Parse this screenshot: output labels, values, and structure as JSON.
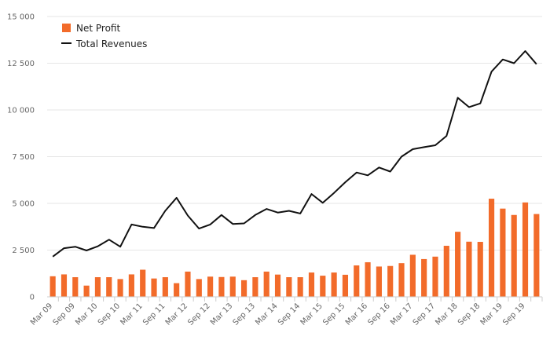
{
  "colors": {
    "bar": "#f26b2a",
    "line": "#111111",
    "grid": "#e6e6e6",
    "axis_text": "#666666"
  },
  "legend": {
    "placement": "top-left",
    "bar_label": "Net Profit",
    "line_label": "Total Revenues"
  },
  "chart_data": {
    "type": "bar",
    "title": "",
    "xlabel": "",
    "ylabel": "",
    "grid": true,
    "ylim": [
      0,
      15000
    ],
    "yticks": [
      0,
      2500,
      5000,
      7500,
      10000,
      12500,
      15000
    ],
    "ytick_labels": [
      "0",
      "2 500",
      "5 000",
      "7 500",
      "10 000",
      "12 500",
      "15 000"
    ],
    "categories": [
      "Mar 09",
      "Jun 09",
      "Sep 09",
      "Dec 09",
      "Mar 10",
      "Jun 10",
      "Sep 10",
      "Dec 10",
      "Mar 11",
      "Jun 11",
      "Sep 11",
      "Dec 11",
      "Mar 12",
      "Jun 12",
      "Sep 12",
      "Dec 12",
      "Mar 13",
      "Jun 13",
      "Sep 13",
      "Dec 13",
      "Mar 14",
      "Jun 14",
      "Sep 14",
      "Dec 14",
      "Mar 15",
      "Jun 15",
      "Sep 15",
      "Dec 15",
      "Mar 16",
      "Jun 16",
      "Sep 16",
      "Dec 16",
      "Mar 17",
      "Jun 17",
      "Sep 17",
      "Dec 17",
      "Mar 18",
      "Jun 18",
      "Sep 18",
      "Dec 18",
      "Mar 19",
      "Jun 19",
      "Sep 19",
      "Dec 19"
    ],
    "x_tick_labels": [
      "Mar 09",
      "Sep 09",
      "Mar 10",
      "Sep 10",
      "Mar 11",
      "Sep 11",
      "Mar 12",
      "Sep 12",
      "Mar 13",
      "Sep 13",
      "Mar 14",
      "Sep 14",
      "Mar 15",
      "Sep 15",
      "Mar 16",
      "Sep 16",
      "Mar 17",
      "Sep 17",
      "Mar 18",
      "Sep 18",
      "Mar 19",
      "Sep 19"
    ],
    "series": [
      {
        "name": "Net Profit",
        "type": "bar",
        "values": [
          1100,
          1200,
          1050,
          600,
          1050,
          1050,
          950,
          1200,
          1450,
          980,
          1050,
          730,
          1350,
          950,
          1080,
          1060,
          1080,
          890,
          1050,
          1350,
          1190,
          1050,
          1050,
          1300,
          1130,
          1300,
          1180,
          1680,
          1850,
          1620,
          1650,
          1800,
          2250,
          2020,
          2150,
          2730,
          3480,
          2950,
          2940,
          5250,
          4720,
          4380,
          5050,
          4430
        ]
      },
      {
        "name": "Total Revenues",
        "type": "line",
        "values": [
          2150,
          2600,
          2680,
          2480,
          2700,
          3060,
          2680,
          3870,
          3750,
          3680,
          4600,
          5300,
          4350,
          3650,
          3870,
          4380,
          3900,
          3930,
          4380,
          4700,
          4510,
          4600,
          4460,
          5500,
          5030,
          5560,
          6130,
          6650,
          6500,
          6920,
          6700,
          7500,
          7900,
          8010,
          8110,
          8610,
          10650,
          10150,
          10350,
          12050,
          12700,
          12500,
          13150,
          12450
        ]
      }
    ]
  }
}
